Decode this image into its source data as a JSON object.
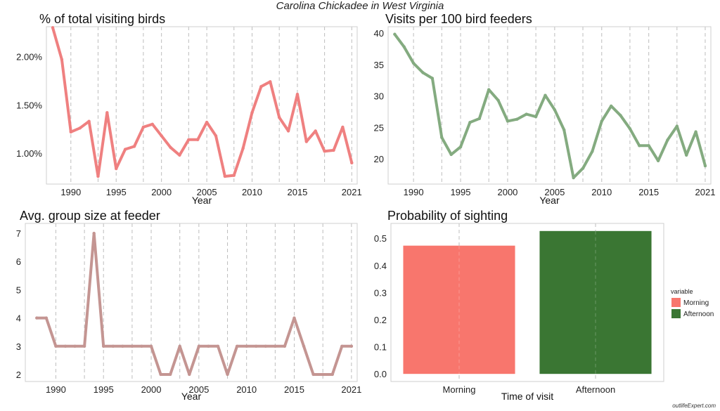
{
  "page": {
    "title": "Carolina Chickadee in West Virginia",
    "credit": "outlifeExpert.com"
  },
  "chart_data": [
    {
      "id": "pct",
      "type": "line",
      "title": "% of total visiting birds",
      "xlabel": "Year",
      "ylabel": "",
      "color": "#ef8080",
      "xlim": [
        1987.3,
        2021.6
      ],
      "ylim": [
        0.68,
        2.31
      ],
      "yticks": [
        1.0,
        1.5,
        2.0
      ],
      "ytick_labels": [
        "1.00%",
        "1.50%",
        "2.00%"
      ],
      "xticks": [
        1990,
        1995,
        2000,
        2005,
        2010,
        2015,
        2021
      ],
      "vgrid": [
        1990,
        1993,
        1995,
        1998,
        2000,
        2003,
        2005,
        2008,
        2010,
        2013,
        2015,
        2018,
        2021
      ],
      "grid": "vertical dashed",
      "x": [
        1988,
        1989,
        1990,
        1991,
        1992,
        1993,
        1994,
        1995,
        1996,
        1997,
        1998,
        1999,
        2000,
        2001,
        2002,
        2003,
        2004,
        2005,
        2006,
        2007,
        2008,
        2009,
        2010,
        2011,
        2012,
        2013,
        2014,
        2015,
        2016,
        2017,
        2018,
        2019,
        2020,
        2021
      ],
      "y": [
        2.3,
        1.97,
        1.22,
        1.26,
        1.33,
        0.76,
        1.42,
        0.84,
        1.04,
        1.07,
        1.27,
        1.3,
        1.18,
        1.06,
        0.98,
        1.14,
        1.14,
        1.32,
        1.18,
        0.76,
        0.77,
        1.05,
        1.42,
        1.69,
        1.74,
        1.37,
        1.23,
        1.61,
        1.12,
        1.23,
        1.02,
        1.03,
        1.27,
        0.9
      ]
    },
    {
      "id": "visits",
      "type": "line",
      "title": "Visits per 100 bird feeders",
      "xlabel": "Year",
      "ylabel": "",
      "color": "#84ab80",
      "xlim": [
        1987.3,
        2021.6
      ],
      "ylim": [
        16,
        41
      ],
      "yticks": [
        20,
        25,
        30,
        35,
        40
      ],
      "ytick_labels": [
        "20",
        "25",
        "30",
        "35",
        "40"
      ],
      "xticks": [
        1990,
        1995,
        2000,
        2005,
        2010,
        2015,
        2021
      ],
      "vgrid": [
        1990,
        1993,
        1995,
        1998,
        2000,
        2003,
        2005,
        2008,
        2010,
        2013,
        2015,
        2018,
        2021
      ],
      "grid": "vertical dashed",
      "x": [
        1988,
        1989,
        1990,
        1991,
        1992,
        1993,
        1994,
        1995,
        1996,
        1997,
        1998,
        1999,
        2000,
        2001,
        2002,
        2003,
        2004,
        2005,
        2006,
        2007,
        2008,
        2009,
        2010,
        2011,
        2012,
        2013,
        2014,
        2015,
        2016,
        2017,
        2018,
        2019,
        2020,
        2021
      ],
      "y": [
        39.8,
        37.8,
        35.2,
        33.7,
        32.8,
        23.4,
        20.7,
        21.9,
        25.8,
        26.4,
        31.0,
        29.3,
        26.0,
        26.3,
        27.1,
        26.7,
        30.1,
        27.8,
        24.6,
        17.0,
        18.5,
        21.2,
        26.0,
        28.4,
        26.9,
        24.8,
        22.1,
        22.1,
        19.7,
        23.0,
        25.2,
        20.6,
        24.3,
        18.9
      ]
    },
    {
      "id": "group",
      "type": "line",
      "title": "Avg. group size at feeder",
      "xlabel": "Year",
      "ylabel": "",
      "color": "#c49592",
      "xlim": [
        1986.8,
        2021.6
      ],
      "ylim": [
        1.75,
        7.35
      ],
      "yticks": [
        2,
        3,
        4,
        5,
        6,
        7
      ],
      "ytick_labels": [
        "2",
        "3",
        "4",
        "5",
        "6",
        "7"
      ],
      "xticks": [
        1990,
        1995,
        2000,
        2005,
        2010,
        2015,
        2021
      ],
      "vgrid": [
        1990,
        1993,
        1995,
        1998,
        2000,
        2003,
        2005,
        2008,
        2010,
        2013,
        2015,
        2018,
        2021
      ],
      "grid": "vertical dashed",
      "x": [
        1988,
        1989,
        1990,
        1991,
        1992,
        1993,
        1994,
        1995,
        1996,
        1997,
        1998,
        1999,
        2000,
        2001,
        2002,
        2003,
        2004,
        2005,
        2006,
        2007,
        2008,
        2009,
        2010,
        2011,
        2012,
        2013,
        2014,
        2015,
        2016,
        2017,
        2018,
        2019,
        2020,
        2021
      ],
      "y": [
        4,
        4,
        3,
        3,
        3,
        3,
        7,
        3,
        3,
        3,
        3,
        3,
        3,
        2,
        2,
        3,
        2,
        3,
        3,
        3,
        2,
        3,
        3,
        3,
        3,
        3,
        3,
        4,
        3,
        2,
        2,
        2,
        3,
        3
      ]
    },
    {
      "id": "prob",
      "type": "bar",
      "title": "Probability of sighting",
      "xlabel": "Time of visit",
      "ylabel": "",
      "categories": [
        "Morning",
        "Afternoon"
      ],
      "values": [
        0.473,
        0.527
      ],
      "colors": [
        "#f8766d",
        "#3a7633"
      ],
      "ylim": [
        -0.028,
        0.555
      ],
      "yticks": [
        0.0,
        0.1,
        0.2,
        0.3,
        0.4,
        0.5
      ],
      "ytick_labels": [
        "0.0",
        "0.1",
        "0.2",
        "0.3",
        "0.4",
        "0.5"
      ],
      "grid": "vertical dashed",
      "legend": {
        "title": "variable",
        "position": "right",
        "entries": [
          "Morning",
          "Afternoon"
        ]
      }
    }
  ]
}
